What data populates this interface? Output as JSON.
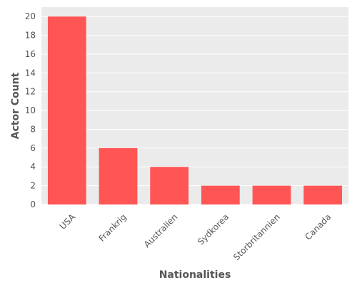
{
  "chart_data": {
    "type": "bar",
    "title": "",
    "xlabel": "Nationalities",
    "ylabel": "Actor Count",
    "categories": [
      "USA",
      "Frankrig",
      "Australien",
      "Sydkorea",
      "Storbritannien",
      "Canada"
    ],
    "values": [
      20,
      6,
      4,
      2,
      2,
      2
    ],
    "ylim": [
      0,
      21
    ],
    "yticks": [
      0,
      2,
      4,
      6,
      8,
      10,
      12,
      14,
      16,
      18,
      20
    ],
    "grid": true,
    "legend": "none"
  },
  "colors": {
    "bar": "#ff5555",
    "plot_background": "#ebebeb",
    "grid": "#ffffff",
    "text": "#555555"
  }
}
